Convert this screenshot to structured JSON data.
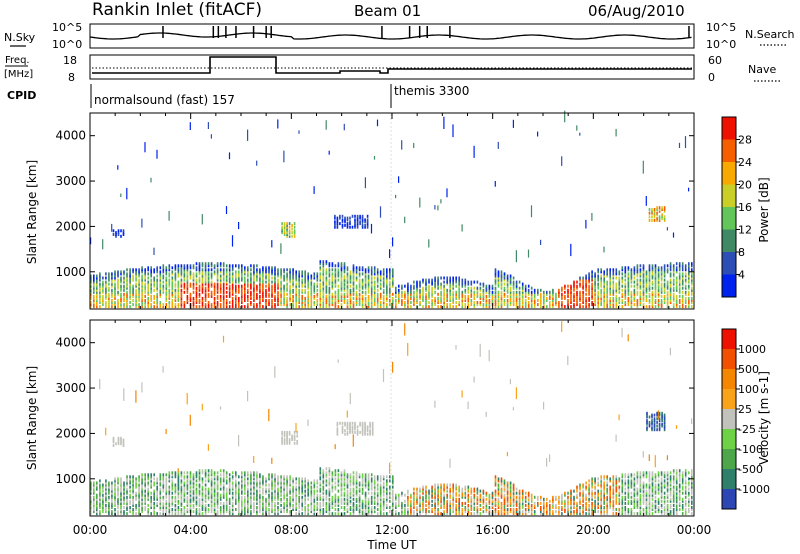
{
  "header": {
    "station": "Rankin Inlet (fitACF)",
    "beam": "Beam 01",
    "date": "06/Aug/2010"
  },
  "summary_panels": {
    "noise": {
      "left_label": "N.Sky",
      "right_label": "N.Search",
      "left_ticks": [
        "10^5",
        "10^0"
      ],
      "right_ticks": [
        "10^5",
        "10^0"
      ]
    },
    "freq": {
      "left_label_1": "Freq.",
      "left_label_2": "[MHz]",
      "left_ticks": [
        "18",
        "8"
      ],
      "right_label": "Nave",
      "right_ticks": [
        "60",
        "0"
      ]
    },
    "cpid": {
      "label": "CPID",
      "entries": [
        {
          "text": "normalsound (fast) 157",
          "start_hour": 0
        },
        {
          "text": "themis 3300",
          "start_hour": 12
        }
      ]
    }
  },
  "time_axis": {
    "label": "Time UT",
    "ticks": [
      "00:00",
      "04:00",
      "08:00",
      "12:00",
      "16:00",
      "20:00",
      "00:00"
    ]
  },
  "chart_data": [
    {
      "type": "heatmap",
      "name": "power",
      "ylabel": "Slant Range [km]",
      "xlim": [
        0,
        24
      ],
      "ylim": [
        180,
        4500
      ],
      "yticks": [
        1000,
        2000,
        3000,
        4000
      ],
      "colorbar_label": "Power [dB]",
      "colorbar_ticks": [
        "28",
        "24",
        "20",
        "16",
        "12",
        "8",
        "4"
      ],
      "colors": [
        "#0022ee",
        "#2d4fb5",
        "#3f8a64",
        "#62c65a",
        "#c9cf26",
        "#f8a900",
        "#f55f00",
        "#ee1100"
      ]
    },
    {
      "type": "heatmap",
      "name": "velocity",
      "ylabel": "Slant Range [km]",
      "xlim": [
        0,
        24
      ],
      "ylim": [
        180,
        4500
      ],
      "yticks": [
        1000,
        2000,
        3000,
        4000
      ],
      "colorbar_label": "Velocity [m s-1]",
      "colorbar_ticks": [
        "1000",
        "500",
        "100",
        "25",
        "-25",
        "-100",
        "-500",
        "-1000"
      ],
      "colors": [
        "#2c46b4",
        "#2f7f6a",
        "#4ea64a",
        "#6fd246",
        "#c2c2bc",
        "#f8a31a",
        "#f58600",
        "#f05000",
        "#ee1100"
      ]
    }
  ]
}
